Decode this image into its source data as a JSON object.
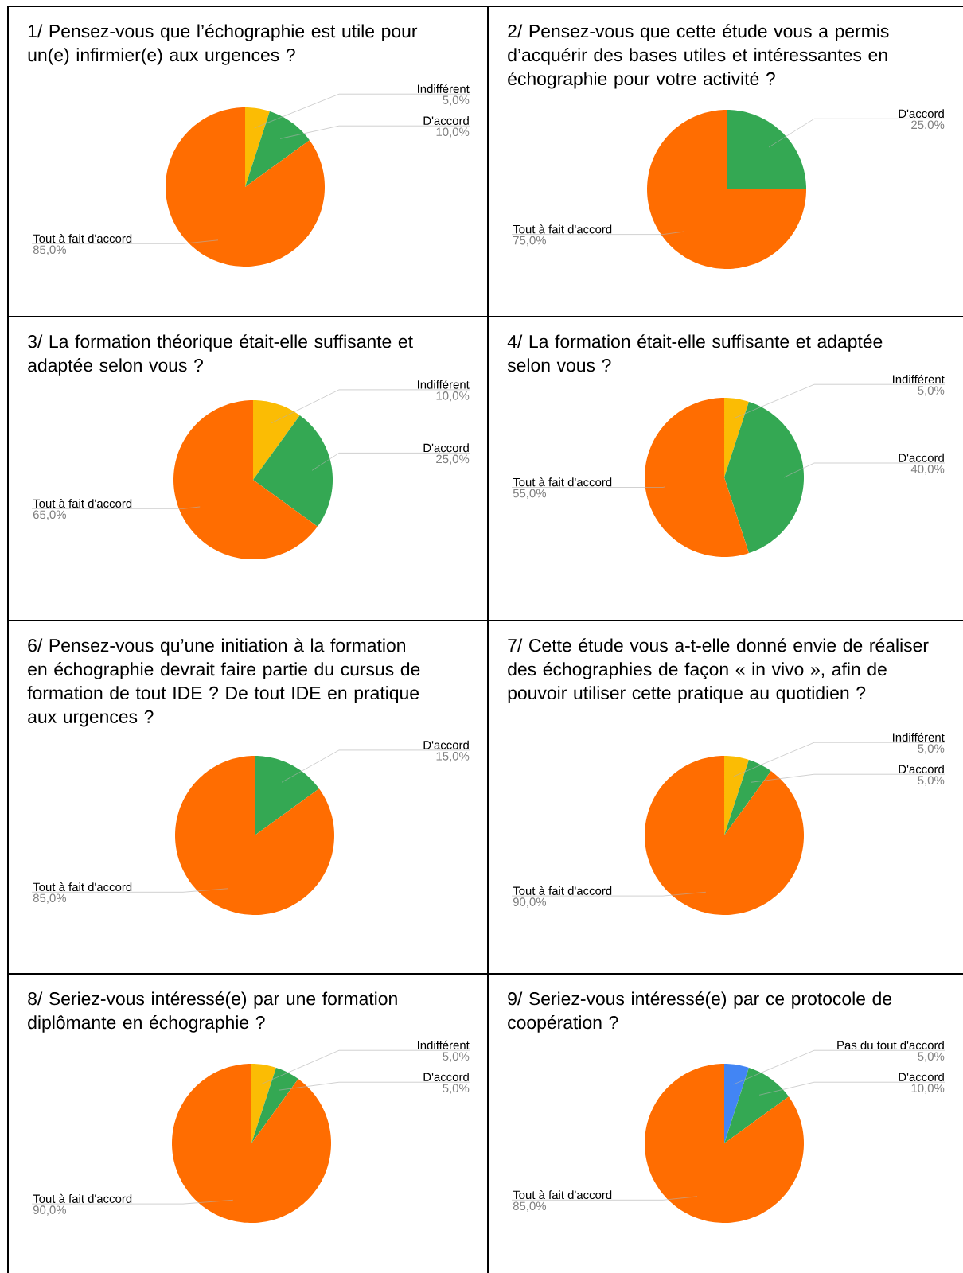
{
  "chart_data": [
    {
      "type": "pie",
      "title": "1/ Pensez-vous que l’échographie est utile pour un(e) infirmier(e) aux urgences ?",
      "categories": [
        "Indifférent",
        "D'accord",
        "Tout à fait d'accord"
      ],
      "values": [
        5,
        10,
        85
      ],
      "colors": [
        "#fbbc04",
        "#34a853",
        "#ff6d01"
      ],
      "value_labels": [
        "5,0%",
        "10,0%",
        "85,0%"
      ]
    },
    {
      "type": "pie",
      "title": "2/ Pensez-vous que cette étude vous a permis d’acquérir des bases utiles et intéressantes en échographie pour votre activité ?",
      "categories": [
        "D'accord",
        "Tout à fait d'accord"
      ],
      "values": [
        25,
        75
      ],
      "colors": [
        "#34a853",
        "#ff6d01"
      ],
      "value_labels": [
        "25,0%",
        "75,0%"
      ]
    },
    {
      "type": "pie",
      "title": "3/ La formation théorique était-elle suffisante et adaptée selon vous ?",
      "categories": [
        "Indifférent",
        "D'accord",
        "Tout à fait d'accord"
      ],
      "values": [
        10,
        25,
        65
      ],
      "colors": [
        "#fbbc04",
        "#34a853",
        "#ff6d01"
      ],
      "value_labels": [
        "10,0%",
        "25,0%",
        "65,0%"
      ]
    },
    {
      "type": "pie",
      "title": "4/ La formation était-elle suffisante et adaptée selon vous ?",
      "categories": [
        "Indifférent",
        "D'accord",
        "Tout à fait d'accord"
      ],
      "values": [
        5,
        40,
        55
      ],
      "colors": [
        "#fbbc04",
        "#34a853",
        "#ff6d01"
      ],
      "value_labels": [
        "5,0%",
        "40,0%",
        "55,0%"
      ]
    },
    {
      "type": "pie",
      "title": "6/ Pensez-vous qu’une initiation à la formation en échographie devrait faire partie du cursus de formation de tout IDE ? De tout IDE en pratique aux urgences ?",
      "categories": [
        "D'accord",
        "Tout à fait d'accord"
      ],
      "values": [
        15,
        85
      ],
      "colors": [
        "#34a853",
        "#ff6d01"
      ],
      "value_labels": [
        "15,0%",
        "85,0%"
      ]
    },
    {
      "type": "pie",
      "title": "7/ Cette étude vous a-t-elle donné envie de réaliser des échographies de façon « in vivo », afin de pouvoir utiliser cette pratique au quotidien ?",
      "categories": [
        "Indifférent",
        "D'accord",
        "Tout à fait d'accord"
      ],
      "values": [
        5,
        5,
        90
      ],
      "colors": [
        "#fbbc04",
        "#34a853",
        "#ff6d01"
      ],
      "value_labels": [
        "5,0%",
        "5,0%",
        "90,0%"
      ]
    },
    {
      "type": "pie",
      "title": "8/ Seriez-vous intéressé(e) par une formation diplômante en échographie ?",
      "categories": [
        "Indifférent",
        "D'accord",
        "Tout à fait d'accord"
      ],
      "values": [
        5,
        5,
        90
      ],
      "colors": [
        "#fbbc04",
        "#34a853",
        "#ff6d01"
      ],
      "value_labels": [
        "5,0%",
        "5,0%",
        "90,0%"
      ]
    },
    {
      "type": "pie",
      "title": "9/ Seriez-vous intéressé(e) par ce protocole de coopération ?",
      "categories": [
        "Pas du tout d'accord",
        "D'accord",
        "Tout à fait d'accord"
      ],
      "values": [
        5,
        10,
        85
      ],
      "colors": [
        "#4285f4",
        "#34a853",
        "#ff6d01"
      ],
      "value_labels": [
        "5,0%",
        "10,0%",
        "85,0%"
      ]
    }
  ]
}
